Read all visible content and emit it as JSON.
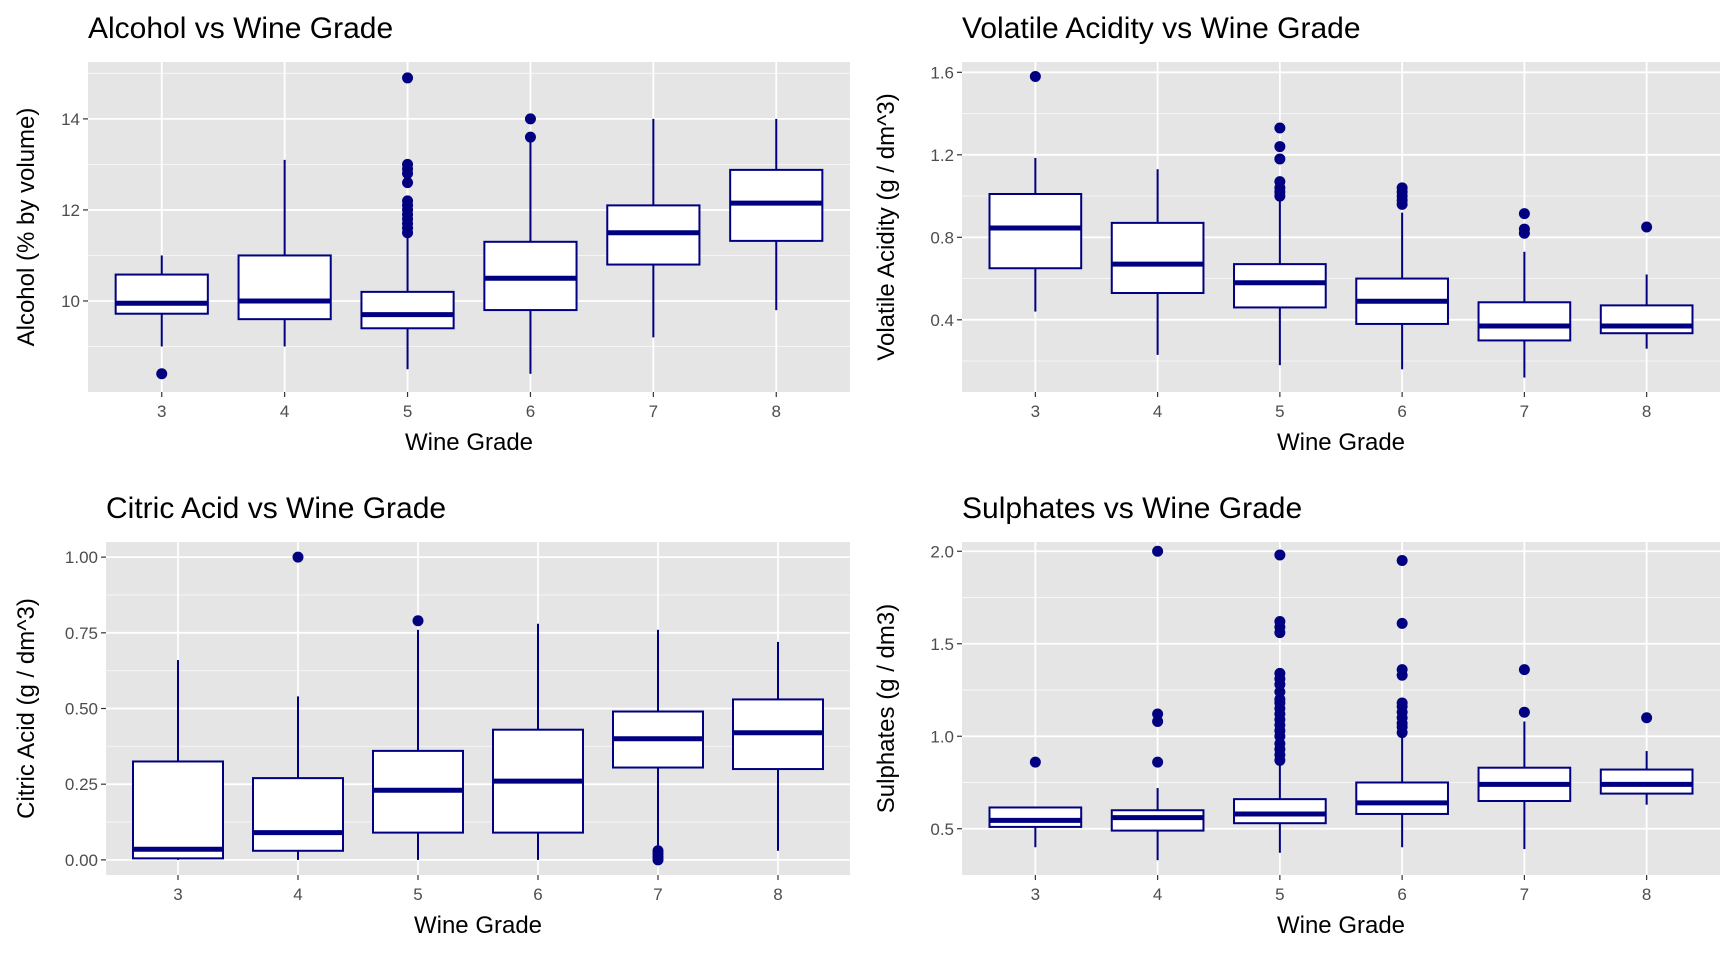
{
  "colors": {
    "panel_bg": "#e5e5e5",
    "grid": "#ffffff",
    "box_stroke": "#000080",
    "box_fill": "#ffffff",
    "outlier": "#000080",
    "tick_label": "#4d4d4d"
  },
  "chart_data": [
    {
      "type": "boxplot",
      "title": "Alcohol vs Wine Grade",
      "xlabel": "Wine Grade",
      "ylabel": "Alcohol (% by volume)",
      "categories": [
        "3",
        "4",
        "5",
        "6",
        "7",
        "8"
      ],
      "ylim": [
        8.0,
        15.25
      ],
      "yticks": [
        10,
        12,
        14
      ],
      "ytick_labels": [
        "10",
        "12",
        "14"
      ],
      "boxes": [
        {
          "grade": "3",
          "lower": 9.0,
          "q1": 9.72,
          "median": 9.95,
          "q3": 10.58,
          "upper": 11.0,
          "outliers": [
            8.4
          ]
        },
        {
          "grade": "4",
          "lower": 9.0,
          "q1": 9.6,
          "median": 10.0,
          "q3": 11.0,
          "upper": 13.1,
          "outliers": []
        },
        {
          "grade": "5",
          "lower": 8.5,
          "q1": 9.4,
          "median": 9.7,
          "q3": 10.2,
          "upper": 11.4,
          "outliers": [
            11.5,
            11.6,
            11.7,
            11.8,
            11.9,
            12.0,
            12.1,
            12.2,
            12.6,
            12.8,
            12.9,
            13.0,
            14.9
          ]
        },
        {
          "grade": "6",
          "lower": 8.4,
          "q1": 9.8,
          "median": 10.5,
          "q3": 11.3,
          "upper": 13.5,
          "outliers": [
            13.6,
            14.0
          ]
        },
        {
          "grade": "7",
          "lower": 9.2,
          "q1": 10.8,
          "median": 11.5,
          "q3": 12.1,
          "upper": 14.0,
          "outliers": []
        },
        {
          "grade": "8",
          "lower": 9.8,
          "q1": 11.32,
          "median": 12.15,
          "q3": 12.88,
          "upper": 14.0,
          "outliers": []
        }
      ]
    },
    {
      "type": "boxplot",
      "title": "Volatile Acidity vs Wine Grade",
      "xlabel": "Wine Grade",
      "ylabel": "Volatile Acidity (g / dm^3)",
      "categories": [
        "3",
        "4",
        "5",
        "6",
        "7",
        "8"
      ],
      "ylim": [
        0.05,
        1.65
      ],
      "yticks": [
        0.4,
        0.8,
        1.2,
        1.6
      ],
      "ytick_labels": [
        "0.4",
        "0.8",
        "1.2",
        "1.6"
      ],
      "boxes": [
        {
          "grade": "3",
          "lower": 0.44,
          "q1": 0.65,
          "median": 0.845,
          "q3": 1.01,
          "upper": 1.185,
          "outliers": [
            1.58
          ]
        },
        {
          "grade": "4",
          "lower": 0.23,
          "q1": 0.53,
          "median": 0.67,
          "q3": 0.87,
          "upper": 1.13,
          "outliers": []
        },
        {
          "grade": "5",
          "lower": 0.18,
          "q1": 0.46,
          "median": 0.58,
          "q3": 0.67,
          "upper": 0.98,
          "outliers": [
            1.0,
            1.02,
            1.04,
            1.07,
            1.18,
            1.24,
            1.33
          ]
        },
        {
          "grade": "6",
          "lower": 0.16,
          "q1": 0.38,
          "median": 0.49,
          "q3": 0.6,
          "upper": 0.92,
          "outliers": [
            0.96,
            0.98,
            1.0,
            1.02,
            1.04
          ]
        },
        {
          "grade": "7",
          "lower": 0.12,
          "q1": 0.3,
          "median": 0.37,
          "q3": 0.485,
          "upper": 0.73,
          "outliers": [
            0.82,
            0.84,
            0.915
          ]
        },
        {
          "grade": "8",
          "lower": 0.26,
          "q1": 0.335,
          "median": 0.37,
          "q3": 0.47,
          "upper": 0.62,
          "outliers": [
            0.85
          ]
        }
      ]
    },
    {
      "type": "boxplot",
      "title": "Citric Acid vs Wine Grade",
      "xlabel": "Wine Grade",
      "ylabel": "Citric Acid (g / dm^3)",
      "categories": [
        "3",
        "4",
        "5",
        "6",
        "7",
        "8"
      ],
      "ylim": [
        -0.05,
        1.05
      ],
      "yticks": [
        0.0,
        0.25,
        0.5,
        0.75,
        1.0
      ],
      "ytick_labels": [
        "0.00",
        "0.25",
        "0.50",
        "0.75",
        "1.00"
      ],
      "boxes": [
        {
          "grade": "3",
          "lower": 0.0,
          "q1": 0.005,
          "median": 0.035,
          "q3": 0.325,
          "upper": 0.66,
          "outliers": []
        },
        {
          "grade": "4",
          "lower": 0.0,
          "q1": 0.03,
          "median": 0.09,
          "q3": 0.27,
          "upper": 0.54,
          "outliers": [
            1.0
          ]
        },
        {
          "grade": "5",
          "lower": 0.0,
          "q1": 0.09,
          "median": 0.23,
          "q3": 0.36,
          "upper": 0.76,
          "outliers": [
            0.79
          ]
        },
        {
          "grade": "6",
          "lower": 0.0,
          "q1": 0.09,
          "median": 0.26,
          "q3": 0.43,
          "upper": 0.78,
          "outliers": []
        },
        {
          "grade": "7",
          "lower": 0.04,
          "q1": 0.305,
          "median": 0.4,
          "q3": 0.49,
          "upper": 0.76,
          "outliers": [
            0.0,
            0.01,
            0.02,
            0.03
          ]
        },
        {
          "grade": "8",
          "lower": 0.03,
          "q1": 0.3,
          "median": 0.42,
          "q3": 0.53,
          "upper": 0.72,
          "outliers": []
        }
      ]
    },
    {
      "type": "boxplot",
      "title": "Sulphates vs Wine Grade",
      "xlabel": "Wine Grade",
      "ylabel": "Sulphates (g / dm3)",
      "categories": [
        "3",
        "4",
        "5",
        "6",
        "7",
        "8"
      ],
      "ylim": [
        0.25,
        2.05
      ],
      "yticks": [
        0.5,
        1.0,
        1.5,
        2.0
      ],
      "ytick_labels": [
        "0.5",
        "1.0",
        "1.5",
        "2.0"
      ],
      "boxes": [
        {
          "grade": "3",
          "lower": 0.4,
          "q1": 0.51,
          "median": 0.545,
          "q3": 0.615,
          "upper": 0.62,
          "outliers": [
            0.86
          ]
        },
        {
          "grade": "4",
          "lower": 0.33,
          "q1": 0.49,
          "median": 0.56,
          "q3": 0.6,
          "upper": 0.72,
          "outliers": [
            0.86,
            1.08,
            1.12,
            2.0
          ]
        },
        {
          "grade": "5",
          "lower": 0.37,
          "q1": 0.53,
          "median": 0.58,
          "q3": 0.66,
          "upper": 0.85,
          "outliers": [
            0.87,
            0.9,
            0.93,
            0.96,
            1.0,
            1.03,
            1.06,
            1.09,
            1.12,
            1.15,
            1.18,
            1.2,
            1.24,
            1.28,
            1.31,
            1.34,
            1.56,
            1.59,
            1.62,
            1.98
          ]
        },
        {
          "grade": "6",
          "lower": 0.4,
          "q1": 0.58,
          "median": 0.64,
          "q3": 0.75,
          "upper": 1.0,
          "outliers": [
            1.02,
            1.05,
            1.07,
            1.1,
            1.13,
            1.16,
            1.18,
            1.33,
            1.36,
            1.61,
            1.95
          ]
        },
        {
          "grade": "7",
          "lower": 0.39,
          "q1": 0.65,
          "median": 0.74,
          "q3": 0.83,
          "upper": 1.08,
          "outliers": [
            1.13,
            1.36
          ]
        },
        {
          "grade": "8",
          "lower": 0.63,
          "q1": 0.69,
          "median": 0.74,
          "q3": 0.82,
          "upper": 0.92,
          "outliers": [
            1.1
          ]
        }
      ]
    }
  ]
}
